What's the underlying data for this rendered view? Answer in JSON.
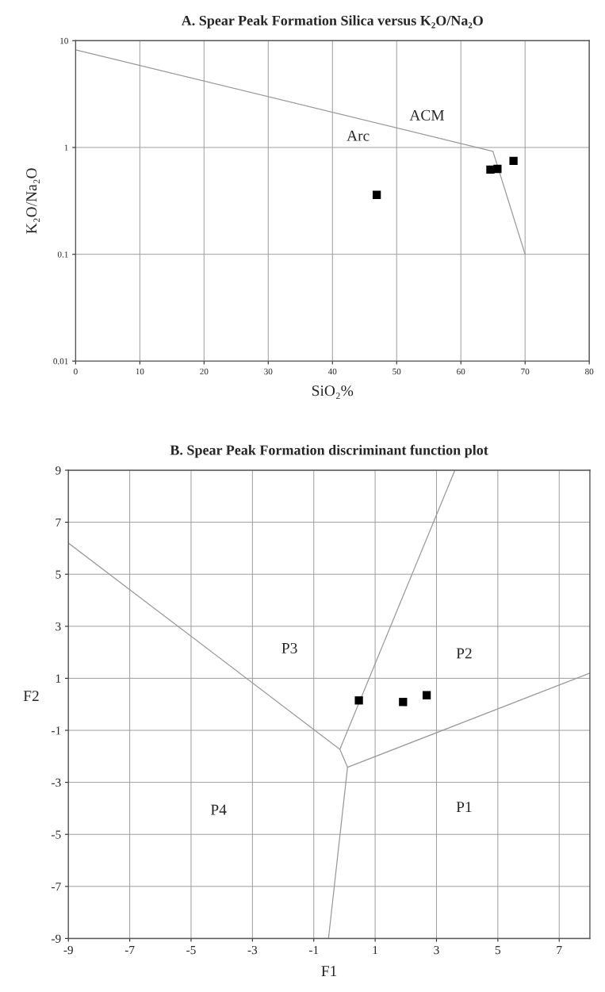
{
  "chart_data": [
    {
      "type": "scatter",
      "title": "A. Spear Peak Formation Silica versus K₂O/Na₂O",
      "xlabel": "SiO₂%",
      "ylabel": "K₂O/Na₂O",
      "log": "y",
      "xlim": [
        0,
        80
      ],
      "xticks": [
        0,
        10,
        20,
        30,
        40,
        50,
        60,
        70,
        80
      ],
      "ylim": [
        0.01,
        10
      ],
      "yticks": [
        0.01,
        0.1,
        1,
        10
      ],
      "grid": true,
      "marker": "square",
      "series": [
        {
          "type": "line",
          "color": "#999999",
          "x": [
            0,
            65,
            70
          ],
          "values": [
            8.2,
            0.92,
            0.1
          ],
          "marker": "none"
        },
        {
          "color": "#000000",
          "x": [
            46.9,
            64.6,
            65.7,
            68.2
          ],
          "values": [
            0.36,
            0.62,
            0.63,
            0.75
          ]
        }
      ],
      "annotations": [
        "Arc",
        "ACM"
      ]
    },
    {
      "type": "scatter",
      "title": "B. Spear Peak Formation discriminant function plot",
      "xlabel": "F1",
      "ylabel": "F2",
      "xlim": [
        -9,
        8
      ],
      "xticks": [
        -9,
        -7,
        -5,
        -3,
        -1,
        1,
        3,
        5,
        7
      ],
      "ylim": [
        -9,
        9
      ],
      "yticks": [
        9,
        7,
        5,
        3,
        1,
        -1,
        -3,
        -5,
        -7,
        -9
      ],
      "grid": true,
      "marker": "square",
      "series": [
        {
          "type": "line",
          "color": "#999999",
          "x": [
            -9,
            -0.15,
            0.1,
            8
          ],
          "values": [
            6.2,
            -1.73,
            -2.42,
            1.2
          ],
          "marker": "none"
        },
        {
          "type": "line",
          "color": "#999999",
          "x": [
            3.6,
            -0.15
          ],
          "values": [
            9,
            -1.73
          ],
          "marker": "none"
        },
        {
          "type": "line",
          "color": "#999999",
          "x": [
            0.1,
            -0.52
          ],
          "values": [
            -2.42,
            -9
          ],
          "marker": "none"
        },
        {
          "color": "#000000",
          "x": [
            0.47,
            1.91,
            2.68
          ],
          "values": [
            0.15,
            0.09,
            0.35
          ]
        }
      ],
      "annotations": [
        "P3",
        "P2",
        "P4",
        "P1"
      ]
    }
  ]
}
